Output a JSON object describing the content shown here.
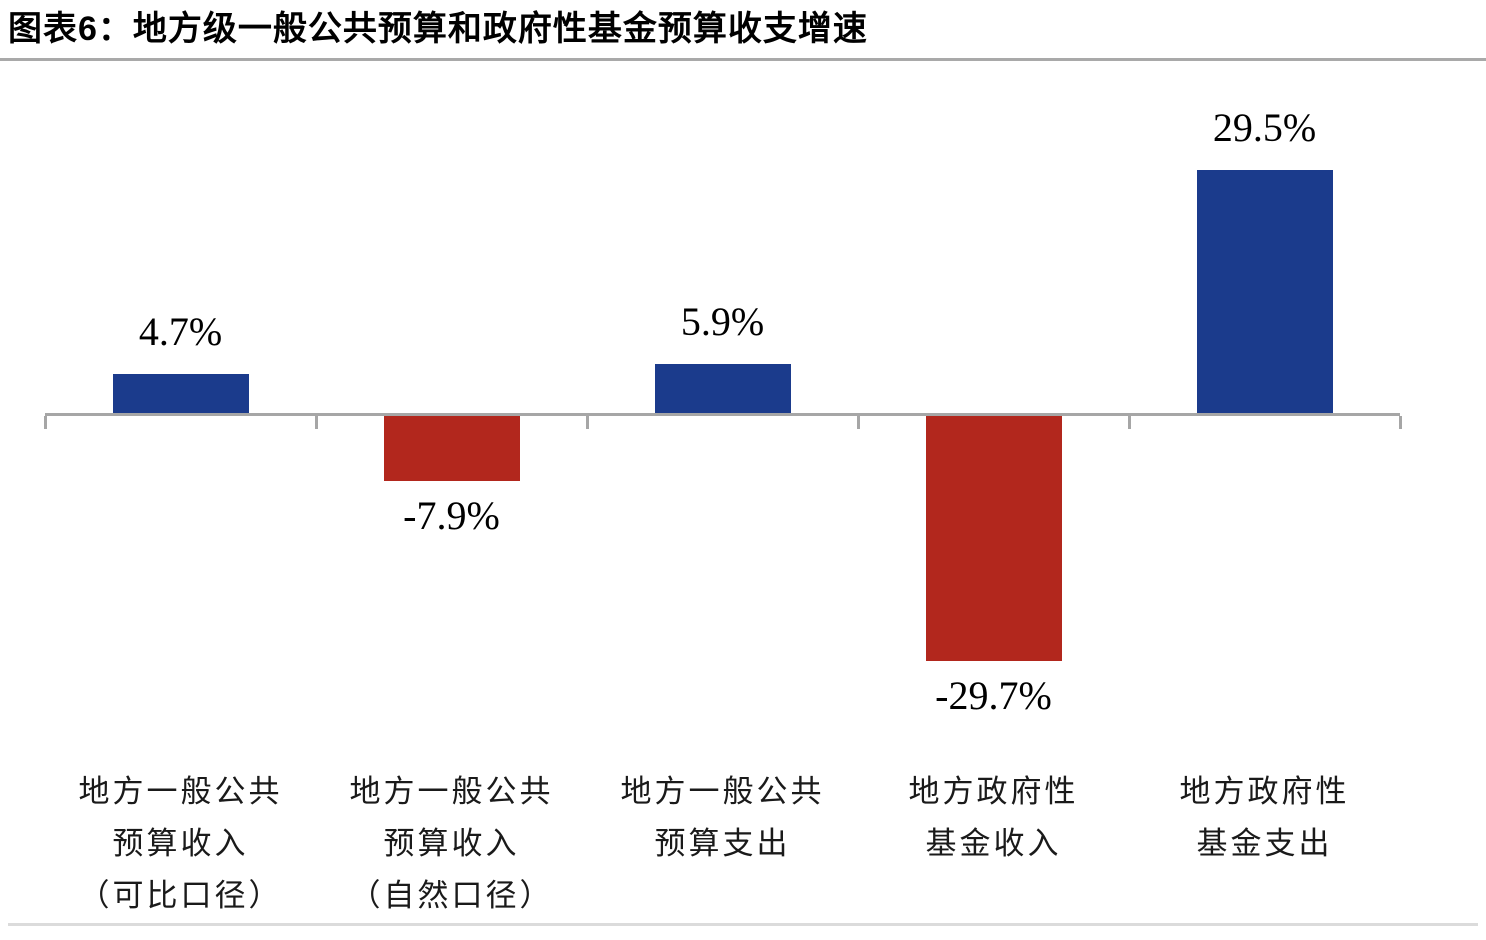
{
  "page": {
    "title": "图表6：地方级一般公共预算和政府性基金预算收支增速"
  },
  "style": {
    "positive_color": "#1b3b8c",
    "negative_color": "#b2271d",
    "axis_color": "#a6a6a6",
    "header_rule_color": "#a9a9a9",
    "bottom_rule_color": "#dbdbdb"
  },
  "chart_data": {
    "type": "bar",
    "title": "地方级一般公共预算和政府性基金预算收支增速",
    "figure_label": "图表6",
    "unit": "%",
    "categories": [
      "地方一般公共预算收入（可比口径）",
      "地方一般公共预算收入（自然口径）",
      "地方一般公共预算支出",
      "地方政府性基金收入",
      "地方政府性基金支出"
    ],
    "category_lines": [
      [
        "地方一般公共",
        "预算收入",
        "（可比口径）"
      ],
      [
        "地方一般公共",
        "预算收入",
        "（自然口径）"
      ],
      [
        "地方一般公共",
        "预算支出"
      ],
      [
        "地方政府性",
        "基金收入"
      ],
      [
        "地方政府性",
        "基金支出"
      ]
    ],
    "values": [
      4.7,
      -7.9,
      5.9,
      -29.7,
      29.5
    ],
    "data_labels": [
      "4.7%",
      "-7.9%",
      "5.9%",
      "-29.7%",
      "29.5%"
    ],
    "color_rule": "positive bars blue, negative bars red",
    "ylim": [
      -35,
      35
    ],
    "grid": false,
    "legend": "none",
    "xlabel": "",
    "ylabel": ""
  }
}
